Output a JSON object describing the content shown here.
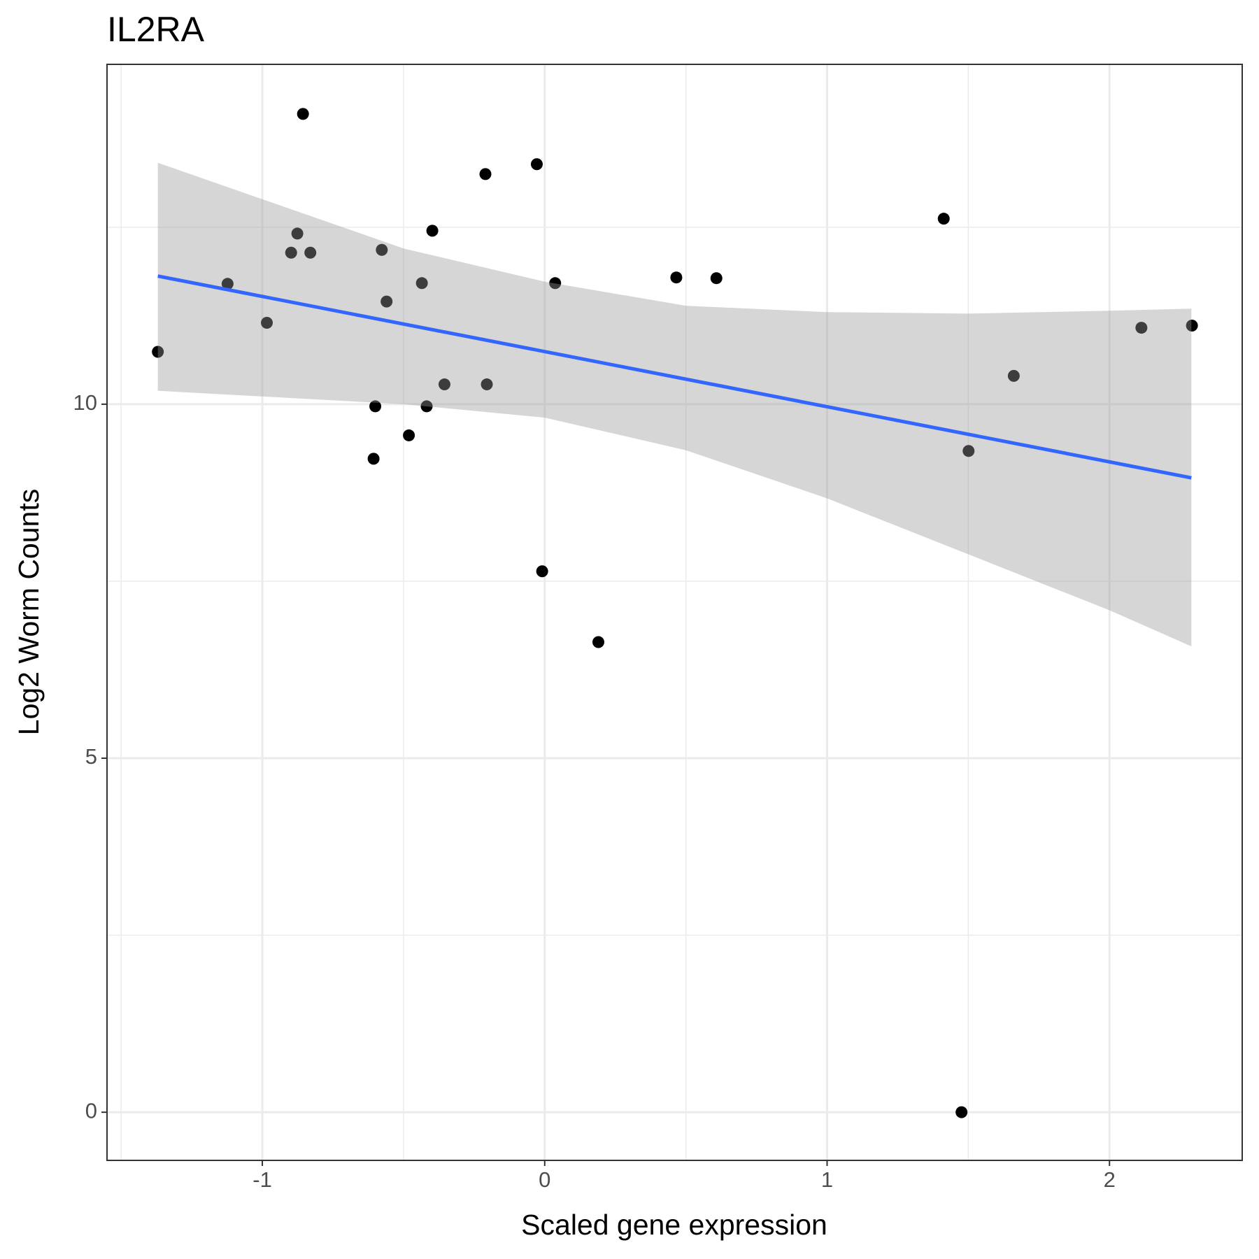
{
  "chart_data": {
    "type": "scatter",
    "title": "IL2RA",
    "x_label": "Scaled gene expression",
    "y_label": "Log2 Worm Counts",
    "x": [
      -1.37,
      -1.123,
      -0.984,
      -0.898,
      -0.876,
      -0.856,
      -0.83,
      -0.606,
      -0.6,
      -0.577,
      -0.56,
      -0.481,
      -0.435,
      -0.418,
      -0.398,
      -0.355,
      -0.21,
      -0.205,
      -0.028,
      -0.009,
      0.037,
      0.19,
      0.466,
      0.608,
      1.413,
      1.476,
      1.501,
      1.661,
      2.113,
      2.292
    ],
    "values": [
      10.74,
      11.7,
      11.15,
      12.14,
      12.41,
      14.1,
      12.14,
      9.23,
      9.97,
      12.18,
      11.45,
      9.56,
      11.71,
      9.97,
      12.45,
      10.28,
      13.25,
      10.28,
      13.39,
      7.64,
      11.71,
      6.64,
      11.79,
      11.78,
      12.62,
      0,
      9.34,
      10.4,
      11.08,
      11.11
    ],
    "color": "#000000",
    "fit": {
      "x": [
        -1.37,
        2.29
      ],
      "values": [
        11.81,
        8.96
      ],
      "color": "#3366FF"
    },
    "band": {
      "x": [
        -1.37,
        -0.5,
        0,
        0.5,
        1,
        1.5,
        2,
        2.29
      ],
      "upper": [
        13.41,
        12.2,
        11.73,
        11.39,
        11.3,
        11.28,
        11.32,
        11.35
      ],
      "lower": [
        10.19,
        10.0,
        9.81,
        9.35,
        8.67,
        7.88,
        7.09,
        6.58
      ],
      "color": "#999999"
    },
    "xlim": [
      -1.55,
      2.47
    ],
    "ylim": [
      -0.68,
      14.8
    ],
    "xticks": [
      -1,
      0,
      1,
      2
    ],
    "yticks": [
      0,
      5,
      10
    ],
    "x_minor_grid": [
      -1.5,
      -0.5,
      0.5,
      1.5
    ],
    "y_minor_grid": [
      2.5,
      7.5,
      12.5
    ],
    "grid": true
  }
}
